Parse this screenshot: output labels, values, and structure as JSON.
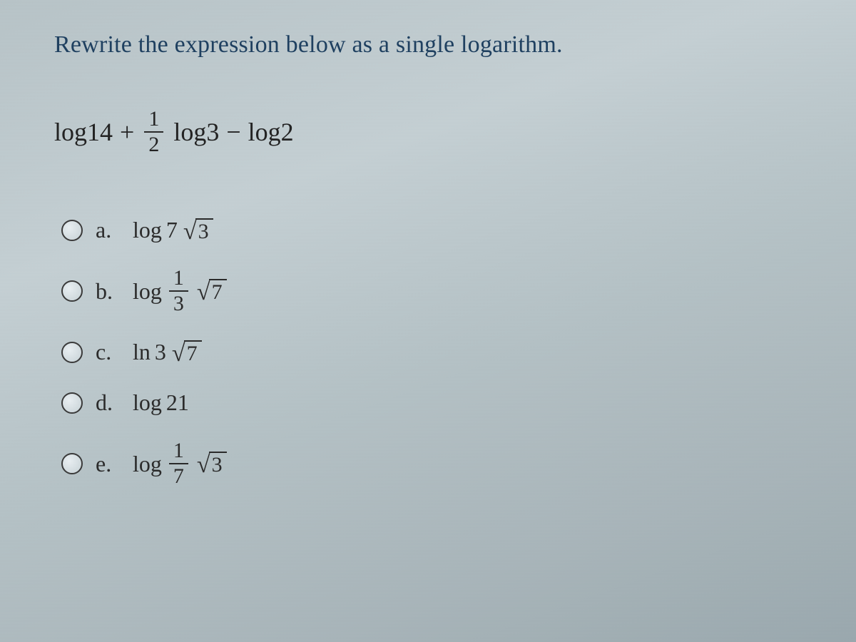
{
  "colors": {
    "prompt_color": "#1f4060",
    "text_color": "#2b2b2b",
    "line_color": "#2a2a2a",
    "background_gradient": [
      "#b8c4c8",
      "#c5d0d4",
      "#b5c2c6",
      "#a8b5ba",
      "#9aa8ae"
    ]
  },
  "typography": {
    "font_family": "Times New Roman",
    "prompt_fontsize_pt": 26,
    "expression_fontsize_pt": 27,
    "option_fontsize_pt": 24
  },
  "prompt": "Rewrite the expression below as a single logarithm.",
  "expression": {
    "term1": "log14",
    "op1": "+",
    "frac_num": "1",
    "frac_den": "2",
    "term2": "log3",
    "op2": "−",
    "term3": "log2"
  },
  "options": [
    {
      "letter": "a.",
      "type": "log_coef_sqrt",
      "func": "log",
      "coef": "7",
      "radicand": "3",
      "selected": false
    },
    {
      "letter": "b.",
      "type": "log_frac_sqrt",
      "func": "log",
      "frac_num": "1",
      "frac_den": "3",
      "radicand": "7",
      "selected": false
    },
    {
      "letter": "c.",
      "type": "ln_coef_sqrt",
      "func": "ln",
      "coef": "3",
      "radicand": "7",
      "selected": false
    },
    {
      "letter": "d.",
      "type": "log_plain",
      "func": "log",
      "arg": "21",
      "selected": false
    },
    {
      "letter": "e.",
      "type": "log_frac_sqrt",
      "func": "log",
      "frac_num": "1",
      "frac_den": "7",
      "radicand": "3",
      "selected": false
    }
  ]
}
